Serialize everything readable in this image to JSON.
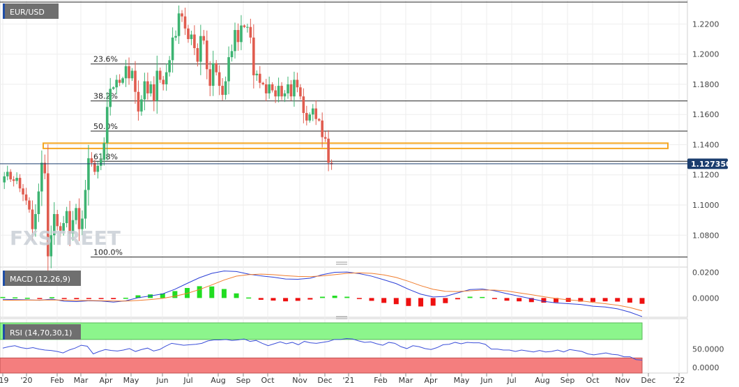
{
  "symbol": "EUR/USD",
  "watermark": "FXSTREET",
  "last_price": "1.127350",
  "colors": {
    "up": "#3cb371",
    "down": "#e05c4f",
    "price_tag": "#1a3d6e",
    "macd_line": "#2b3fd6",
    "signal_line": "#f07d2e",
    "hist_up": "#22dd22",
    "hist_down": "#ee1111",
    "rsi_line": "#3b4fd9",
    "rsi_upper_zone": "#8cf58c",
    "rsi_lower_zone": "#f47e7e",
    "zone": "#f5a623"
  },
  "chart_data": [
    {
      "type": "candlestick",
      "name": "EUR/USD weekly",
      "x_labels": [
        "'19",
        "'20",
        "Feb",
        "Mar",
        "Apr",
        "May",
        "Jun",
        "Jul",
        "Aug",
        "Sep",
        "Oct",
        "Nov",
        "Dec",
        "'21",
        "Feb",
        "Mar",
        "Apr",
        "May",
        "Jun",
        "Jul",
        "Aug",
        "Sep",
        "Oct",
        "Nov",
        "Dec",
        "'22"
      ],
      "y_ticks": [
        "1.2200",
        "1.2000",
        "1.1800",
        "1.1600",
        "1.1400",
        "1.1200",
        "1.1000",
        "1.0800"
      ],
      "ylim": [
        1.0635,
        1.2345
      ],
      "close_path": [
        1.115,
        1.119,
        1.122,
        1.117,
        1.116,
        1.118,
        1.111,
        1.107,
        1.103,
        1.097,
        1.084,
        1.094,
        1.109,
        1.128,
        1.121,
        1.066,
        1.08,
        1.094,
        1.086,
        1.083,
        1.088,
        1.096,
        1.081,
        1.09,
        1.098,
        1.084,
        1.091,
        1.11,
        1.131,
        1.128,
        1.122,
        1.126,
        1.13,
        1.141,
        1.165,
        1.177,
        1.178,
        1.183,
        1.181,
        1.184,
        1.192,
        1.184,
        1.189,
        1.175,
        1.162,
        1.17,
        1.182,
        1.174,
        1.18,
        1.169,
        1.189,
        1.183,
        1.18,
        1.188,
        1.196,
        1.211,
        1.212,
        1.227,
        1.225,
        1.217,
        1.21,
        1.213,
        1.204,
        1.195,
        1.212,
        1.209,
        1.19,
        1.179,
        1.194,
        1.188,
        1.179,
        1.173,
        1.182,
        1.198,
        1.202,
        1.216,
        1.208,
        1.219,
        1.218,
        1.218,
        1.211,
        1.186,
        1.187,
        1.181,
        1.18,
        1.174,
        1.18,
        1.176,
        1.172,
        1.179,
        1.172,
        1.174,
        1.18,
        1.172,
        1.183,
        1.178,
        1.172,
        1.161,
        1.156,
        1.16,
        1.164,
        1.157,
        1.156,
        1.145,
        1.144,
        1.128,
        1.127
      ],
      "fibonacci": [
        {
          "label": "23.6%",
          "value": 1.1935
        },
        {
          "label": "38.2%",
          "value": 1.169
        },
        {
          "label": "50.0%",
          "value": 1.149
        },
        {
          "label": "61.8%",
          "value": 1.129
        },
        {
          "label": "100.0%",
          "value": 1.0655
        }
      ],
      "top_level_value": 1.2345,
      "zone": [
        1.1375,
        1.141
      ],
      "price_line": 1.12735
    },
    {
      "type": "line",
      "title": "MACD (12,26,9)",
      "y_ticks": [
        "0.0200",
        "0.0000"
      ],
      "ylim": [
        -0.015,
        0.023
      ],
      "series": [
        {
          "name": "MACD",
          "values": [
            -0.001,
            -0.0012,
            -0.0014,
            -0.0018,
            -0.0008,
            -0.0025,
            -0.0028,
            -0.0022,
            -0.0024,
            -0.0032,
            -0.0022,
            0.0002,
            0.0016,
            0.0032,
            0.0068,
            0.0114,
            0.0158,
            0.0192,
            0.021,
            0.0206,
            0.0186,
            0.0172,
            0.0162,
            0.0148,
            0.0146,
            0.0154,
            0.0182,
            0.02,
            0.0202,
            0.019,
            0.017,
            0.0142,
            0.0112,
            0.0068,
            0.003,
            0.0008,
            0.0012,
            0.004,
            0.0066,
            0.007,
            0.0056,
            0.0034,
            0.0014,
            -0.0006,
            -0.0026,
            -0.0038,
            -0.0044,
            -0.005,
            -0.0064,
            -0.007,
            -0.0084,
            -0.011,
            -0.0145
          ]
        },
        {
          "name": "Signal",
          "values": [
            -0.0018,
            -0.0017,
            -0.0016,
            -0.0016,
            -0.0015,
            -0.0017,
            -0.0019,
            -0.002,
            -0.0021,
            -0.0023,
            -0.0024,
            -0.0019,
            -0.0012,
            -0.0003,
            0.0014,
            0.0036,
            0.0066,
            0.0102,
            0.014,
            0.017,
            0.0182,
            0.0186,
            0.0182,
            0.0174,
            0.0168,
            0.0166,
            0.0172,
            0.0182,
            0.0192,
            0.0196,
            0.0192,
            0.018,
            0.016,
            0.013,
            0.0096,
            0.0068,
            0.0052,
            0.005,
            0.0056,
            0.0062,
            0.0062,
            0.0055,
            0.004,
            0.0026,
            0.001,
            -0.0004,
            -0.0014,
            -0.0022,
            -0.0034,
            -0.0044,
            -0.0056,
            -0.0074,
            -0.01
          ]
        }
      ]
    },
    {
      "type": "line",
      "title": "RSI (14,70,30,1)",
      "y_ticks": [
        "50.0000",
        "0.0000"
      ],
      "ylim": [
        0,
        100
      ],
      "upper_band": 70,
      "lower_band": 30,
      "series": [
        {
          "name": "RSI",
          "values": [
            52,
            55,
            57,
            53,
            51,
            53,
            50,
            48,
            47,
            45,
            42,
            48,
            52,
            58,
            56,
            40,
            45,
            49,
            47,
            46,
            48,
            51,
            45,
            49,
            52,
            46,
            49,
            56,
            62,
            60,
            58,
            59,
            60,
            62,
            67,
            69,
            69,
            70,
            68,
            69,
            71,
            66,
            68,
            62,
            57,
            61,
            65,
            61,
            64,
            59,
            66,
            63,
            62,
            64,
            66,
            70,
            70,
            72,
            71,
            67,
            64,
            65,
            61,
            58,
            64,
            62,
            55,
            51,
            57,
            55,
            51,
            49,
            53,
            59,
            60,
            64,
            61,
            64,
            63,
            63,
            60,
            50,
            50,
            48,
            48,
            45,
            48,
            46,
            44,
            47,
            44,
            45,
            48,
            44,
            49,
            47,
            45,
            40,
            38,
            40,
            42,
            39,
            38,
            34,
            34,
            28,
            27
          ]
        }
      ]
    }
  ]
}
